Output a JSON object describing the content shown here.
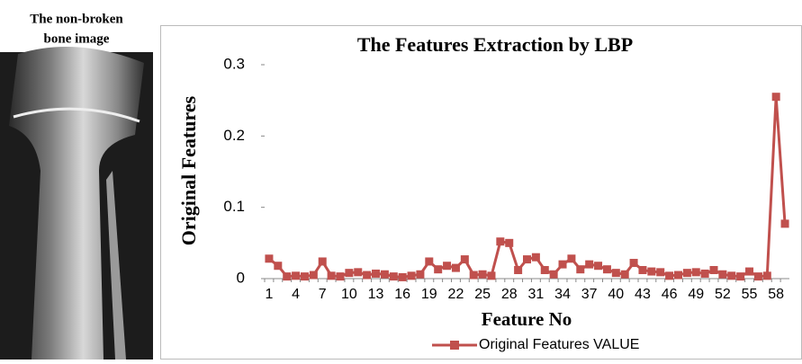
{
  "image_caption": [
    "The non-broken",
    "bone image"
  ],
  "chart_data": {
    "type": "line",
    "title": "The Features Extraction by LBP",
    "xlabel": "Feature No",
    "ylabel": "Original Features",
    "categories": [
      "1",
      null,
      null,
      "4",
      null,
      null,
      "7",
      null,
      null,
      "10",
      null,
      null,
      "13",
      null,
      null,
      "16",
      null,
      null,
      "19",
      null,
      null,
      "22",
      null,
      null,
      "25",
      null,
      null,
      "28",
      null,
      null,
      "31",
      null,
      null,
      "34",
      null,
      null,
      "37",
      null,
      null,
      "40",
      null,
      null,
      "43",
      null,
      null,
      "46",
      null,
      null,
      "49",
      null,
      null,
      "52",
      null,
      null,
      "55",
      null,
      null,
      "58",
      null
    ],
    "series": [
      {
        "name": "Original Features VALUE",
        "color": "#c0504d",
        "values": [
          0.028,
          0.018,
          0.003,
          0.004,
          0.003,
          0.005,
          0.024,
          0.004,
          0.003,
          0.008,
          0.009,
          0.005,
          0.007,
          0.006,
          0.003,
          0.002,
          0.004,
          0.006,
          0.024,
          0.013,
          0.018,
          0.015,
          0.027,
          0.005,
          0.006,
          0.004,
          0.052,
          0.05,
          0.012,
          0.027,
          0.03,
          0.012,
          0.006,
          0.02,
          0.028,
          0.013,
          0.02,
          0.018,
          0.013,
          0.008,
          0.006,
          0.022,
          0.012,
          0.01,
          0.009,
          0.004,
          0.005,
          0.008,
          0.009,
          0.007,
          0.012,
          0.006,
          0.004,
          0.003,
          0.01,
          0.003,
          0.004,
          0.255,
          0.077
        ]
      }
    ],
    "ylim": [
      0,
      0.3
    ],
    "yticks": [
      0,
      0.1,
      0.2,
      0.3
    ],
    "legend": "bottom"
  }
}
